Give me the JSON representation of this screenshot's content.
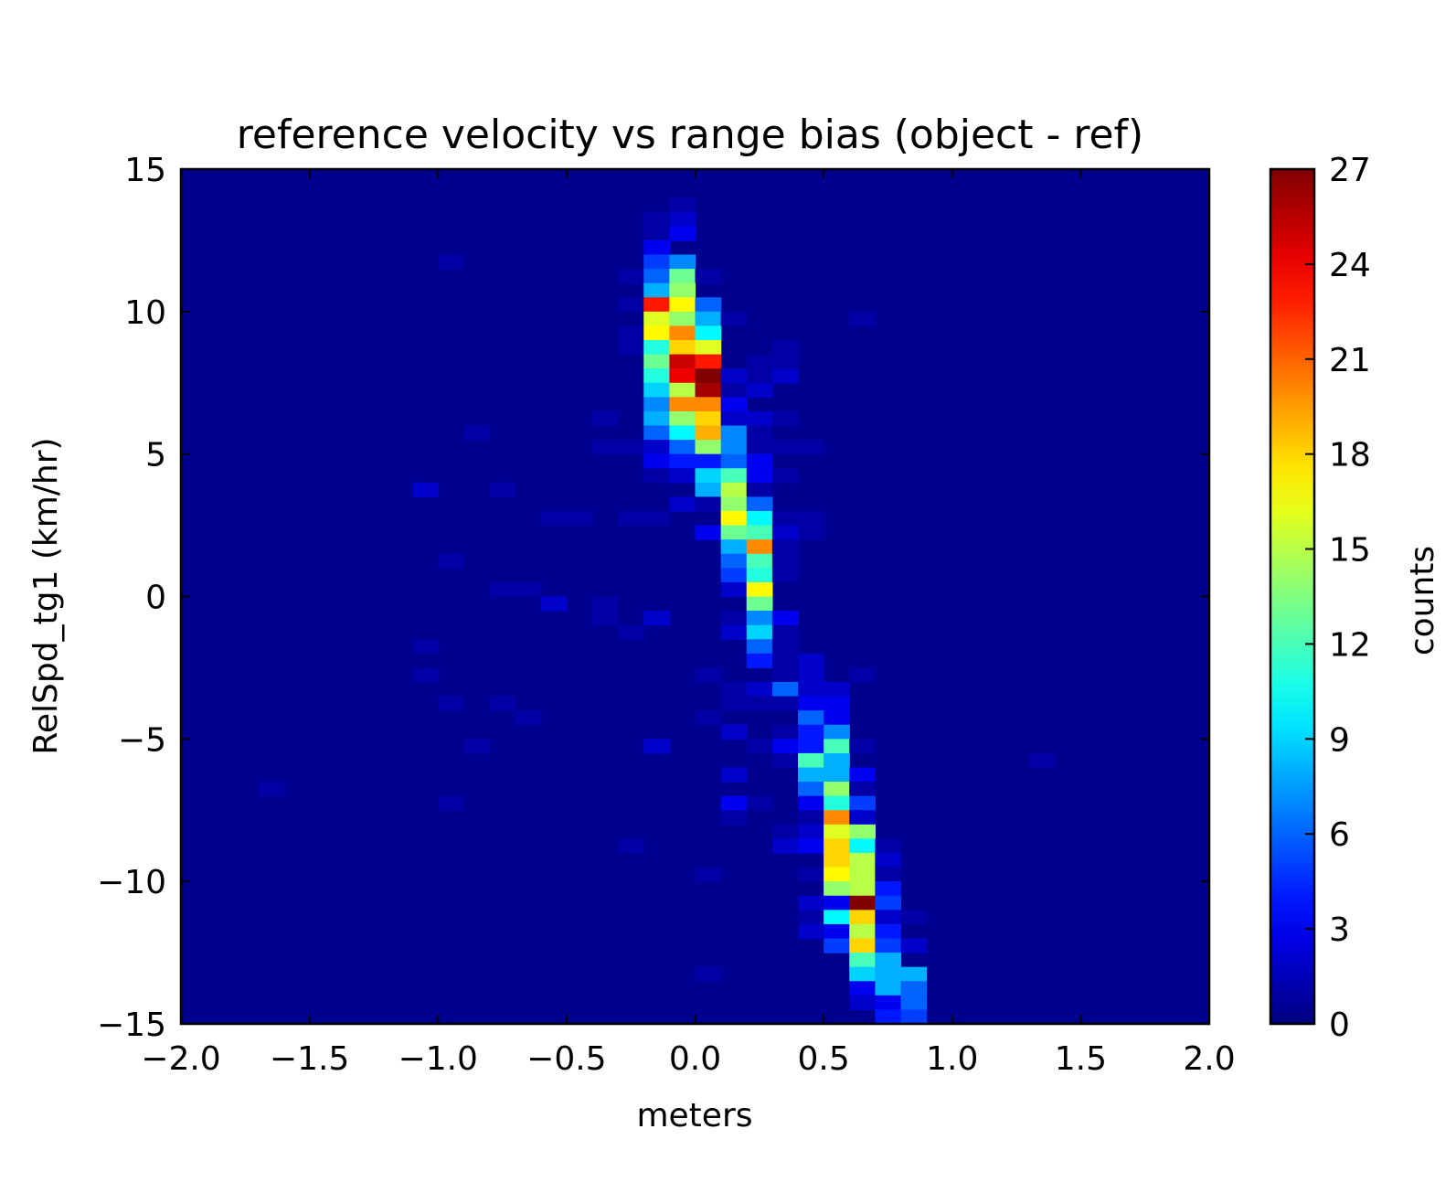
{
  "chart_data": {
    "type": "heatmap",
    "title": "reference velocity vs range bias (object - ref)",
    "xlabel": "meters",
    "ylabel": "RelSpd_tg1 (km/hr)",
    "xlim": [
      -2.0,
      2.0
    ],
    "ylim": [
      -15,
      15
    ],
    "x_ticks": [
      "−2.0",
      "−1.5",
      "−1.0",
      "−0.5",
      "0.0",
      "0.5",
      "1.0",
      "1.5",
      "2.0"
    ],
    "x_tick_values": [
      -2.0,
      -1.5,
      -1.0,
      -0.5,
      0.0,
      0.5,
      1.0,
      1.5,
      2.0
    ],
    "y_ticks": [
      "15",
      "10",
      "5",
      "0",
      "−5",
      "−10",
      "−15"
    ],
    "y_tick_values": [
      15,
      10,
      5,
      0,
      -5,
      -10,
      -15
    ],
    "bin_width_x": 0.1,
    "bin_height_y": 0.5,
    "colormap": "jet",
    "colorbar": {
      "label": "counts",
      "min": 0,
      "max": 27,
      "ticks": [
        "0",
        "3",
        "6",
        "9",
        "12",
        "15",
        "18",
        "21",
        "24",
        "27"
      ],
      "tick_values": [
        0,
        3,
        6,
        9,
        12,
        15,
        18,
        21,
        24,
        27
      ]
    },
    "points_note": "cells: [x_bin_center_m, y_bin_center_kmh, count]; all other bins are 0",
    "cells": [
      [
        -0.05,
        13.75,
        1
      ],
      [
        -0.05,
        13.25,
        2
      ],
      [
        -0.15,
        13.25,
        1
      ],
      [
        -0.15,
        12.75,
        1
      ],
      [
        -0.05,
        12.75,
        3
      ],
      [
        -0.15,
        12.25,
        3
      ],
      [
        -0.15,
        11.75,
        5
      ],
      [
        -0.05,
        11.75,
        7
      ],
      [
        -0.95,
        11.75,
        1
      ],
      [
        -0.25,
        11.25,
        1
      ],
      [
        -0.15,
        11.25,
        6
      ],
      [
        -0.05,
        11.25,
        13
      ],
      [
        0.05,
        11.25,
        1
      ],
      [
        -0.15,
        10.75,
        8
      ],
      [
        -0.05,
        10.75,
        14
      ],
      [
        -0.25,
        10.25,
        1
      ],
      [
        -0.15,
        10.25,
        23
      ],
      [
        -0.05,
        10.25,
        17
      ],
      [
        0.05,
        10.25,
        6
      ],
      [
        -0.15,
        9.75,
        16
      ],
      [
        -0.05,
        9.75,
        14
      ],
      [
        0.05,
        9.75,
        8
      ],
      [
        0.15,
        9.75,
        1
      ],
      [
        0.65,
        9.75,
        1
      ],
      [
        -0.25,
        9.25,
        1
      ],
      [
        -0.15,
        9.25,
        17
      ],
      [
        -0.05,
        9.25,
        20
      ],
      [
        0.05,
        9.25,
        10
      ],
      [
        -0.25,
        8.75,
        1
      ],
      [
        -0.15,
        8.75,
        11
      ],
      [
        -0.05,
        8.75,
        18
      ],
      [
        0.05,
        8.75,
        16
      ],
      [
        0.35,
        8.75,
        1
      ],
      [
        -0.15,
        8.25,
        13
      ],
      [
        -0.05,
        8.25,
        25
      ],
      [
        0.05,
        8.25,
        23
      ],
      [
        0.25,
        8.25,
        1
      ],
      [
        0.35,
        8.25,
        1
      ],
      [
        -0.15,
        7.75,
        11
      ],
      [
        -0.05,
        7.75,
        24
      ],
      [
        0.05,
        7.75,
        27
      ],
      [
        0.15,
        7.75,
        2
      ],
      [
        0.25,
        7.75,
        1
      ],
      [
        0.35,
        7.75,
        2
      ],
      [
        -0.15,
        7.25,
        9
      ],
      [
        -0.05,
        7.25,
        15
      ],
      [
        0.05,
        7.25,
        26
      ],
      [
        0.15,
        7.25,
        1
      ],
      [
        0.25,
        7.25,
        2
      ],
      [
        -0.15,
        6.75,
        7
      ],
      [
        -0.05,
        6.75,
        20
      ],
      [
        0.05,
        6.75,
        20
      ],
      [
        0.15,
        6.75,
        3
      ],
      [
        -0.35,
        6.25,
        1
      ],
      [
        -0.15,
        6.25,
        8
      ],
      [
        -0.05,
        6.25,
        14
      ],
      [
        0.05,
        6.25,
        18
      ],
      [
        0.15,
        6.25,
        2
      ],
      [
        0.25,
        6.25,
        2
      ],
      [
        0.35,
        6.25,
        1
      ],
      [
        -0.85,
        5.75,
        1
      ],
      [
        -0.15,
        5.75,
        6
      ],
      [
        -0.05,
        5.75,
        10
      ],
      [
        0.05,
        5.75,
        19
      ],
      [
        0.15,
        5.75,
        7
      ],
      [
        0.25,
        5.75,
        1
      ],
      [
        -0.35,
        5.25,
        1
      ],
      [
        -0.25,
        5.25,
        1
      ],
      [
        -0.15,
        5.25,
        2
      ],
      [
        -0.05,
        5.25,
        6
      ],
      [
        0.05,
        5.25,
        14
      ],
      [
        0.15,
        5.25,
        7
      ],
      [
        0.25,
        5.25,
        1
      ],
      [
        0.35,
        5.25,
        1
      ],
      [
        0.45,
        5.25,
        1
      ],
      [
        -0.15,
        4.75,
        3
      ],
      [
        -0.05,
        4.75,
        4
      ],
      [
        0.05,
        4.75,
        4
      ],
      [
        0.15,
        4.75,
        6
      ],
      [
        0.25,
        4.75,
        3
      ],
      [
        -0.15,
        4.25,
        1
      ],
      [
        -0.05,
        4.25,
        2
      ],
      [
        0.05,
        4.25,
        9
      ],
      [
        0.15,
        4.25,
        12
      ],
      [
        0.25,
        4.25,
        3
      ],
      [
        0.35,
        4.25,
        1
      ],
      [
        -1.05,
        3.75,
        2
      ],
      [
        -0.75,
        3.75,
        1
      ],
      [
        0.05,
        3.75,
        8
      ],
      [
        0.15,
        3.75,
        15
      ],
      [
        0.25,
        3.75,
        1
      ],
      [
        -0.05,
        3.25,
        2
      ],
      [
        0.05,
        3.25,
        1
      ],
      [
        0.15,
        3.25,
        14
      ],
      [
        0.25,
        3.25,
        6
      ],
      [
        -0.55,
        2.75,
        1
      ],
      [
        -0.45,
        2.75,
        1
      ],
      [
        -0.25,
        2.75,
        1
      ],
      [
        -0.15,
        2.75,
        1
      ],
      [
        0.15,
        2.75,
        17
      ],
      [
        0.25,
        2.75,
        10
      ],
      [
        0.35,
        2.75,
        1
      ],
      [
        0.45,
        2.75,
        1
      ],
      [
        0.05,
        2.25,
        3
      ],
      [
        0.15,
        2.25,
        13
      ],
      [
        0.25,
        2.25,
        12
      ],
      [
        0.35,
        2.25,
        2
      ],
      [
        0.45,
        2.25,
        1
      ],
      [
        0.15,
        1.75,
        8
      ],
      [
        0.25,
        1.75,
        20
      ],
      [
        0.35,
        1.75,
        1
      ],
      [
        -0.95,
        1.25,
        1
      ],
      [
        0.15,
        1.25,
        6
      ],
      [
        0.25,
        1.25,
        12
      ],
      [
        0.35,
        1.25,
        1
      ],
      [
        0.15,
        0.75,
        5
      ],
      [
        0.25,
        0.75,
        11
      ],
      [
        0.35,
        0.75,
        1
      ],
      [
        -0.75,
        0.25,
        1
      ],
      [
        -0.65,
        0.25,
        1
      ],
      [
        0.15,
        0.25,
        2
      ],
      [
        0.25,
        0.25,
        17
      ],
      [
        -0.55,
        -0.25,
        2
      ],
      [
        -0.35,
        -0.25,
        1
      ],
      [
        0.25,
        -0.25,
        13
      ],
      [
        -0.35,
        -0.75,
        1
      ],
      [
        -0.15,
        -0.75,
        2
      ],
      [
        0.15,
        -0.75,
        1
      ],
      [
        0.25,
        -0.75,
        7
      ],
      [
        0.35,
        -0.75,
        3
      ],
      [
        -0.25,
        -1.25,
        1
      ],
      [
        0.15,
        -1.25,
        2
      ],
      [
        0.25,
        -1.25,
        9
      ],
      [
        0.35,
        -1.25,
        1
      ],
      [
        -1.05,
        -1.75,
        1
      ],
      [
        0.25,
        -1.75,
        6
      ],
      [
        0.35,
        -1.75,
        1
      ],
      [
        0.25,
        -2.25,
        4
      ],
      [
        0.35,
        -2.25,
        1
      ],
      [
        0.45,
        -2.25,
        2
      ],
      [
        -1.05,
        -2.75,
        1
      ],
      [
        0.05,
        -2.75,
        1
      ],
      [
        0.35,
        -2.75,
        1
      ],
      [
        0.45,
        -2.75,
        2
      ],
      [
        0.65,
        -2.75,
        1
      ],
      [
        0.15,
        -3.25,
        1
      ],
      [
        0.25,
        -3.25,
        2
      ],
      [
        0.35,
        -3.25,
        6
      ],
      [
        0.45,
        -3.25,
        2
      ],
      [
        0.55,
        -3.25,
        2
      ],
      [
        -0.95,
        -3.75,
        1
      ],
      [
        -0.75,
        -3.75,
        1
      ],
      [
        0.15,
        -3.75,
        1
      ],
      [
        0.25,
        -3.75,
        1
      ],
      [
        0.35,
        -3.75,
        1
      ],
      [
        0.45,
        -3.75,
        3
      ],
      [
        0.55,
        -3.75,
        3
      ],
      [
        -0.65,
        -4.25,
        1
      ],
      [
        0.05,
        -4.25,
        1
      ],
      [
        0.45,
        -4.25,
        6
      ],
      [
        0.55,
        -4.25,
        3
      ],
      [
        0.15,
        -4.75,
        2
      ],
      [
        0.35,
        -4.75,
        1
      ],
      [
        0.45,
        -4.75,
        4
      ],
      [
        0.55,
        -4.75,
        7
      ],
      [
        -0.85,
        -5.25,
        1
      ],
      [
        -0.15,
        -5.25,
        2
      ],
      [
        0.25,
        -5.25,
        1
      ],
      [
        0.35,
        -5.25,
        3
      ],
      [
        0.45,
        -5.25,
        4
      ],
      [
        0.55,
        -5.25,
        12
      ],
      [
        0.65,
        -5.25,
        1
      ],
      [
        0.35,
        -5.75,
        1
      ],
      [
        0.45,
        -5.75,
        12
      ],
      [
        0.55,
        -5.75,
        8
      ],
      [
        1.35,
        -5.75,
        1
      ],
      [
        0.15,
        -6.25,
        2
      ],
      [
        0.45,
        -6.25,
        8
      ],
      [
        0.55,
        -6.25,
        8
      ],
      [
        0.65,
        -6.25,
        3
      ],
      [
        -1.65,
        -6.75,
        1
      ],
      [
        0.45,
        -6.75,
        6
      ],
      [
        0.55,
        -6.75,
        14
      ],
      [
        0.65,
        -6.75,
        1
      ],
      [
        -0.95,
        -7.25,
        1
      ],
      [
        0.15,
        -7.25,
        3
      ],
      [
        0.25,
        -7.25,
        1
      ],
      [
        0.45,
        -7.25,
        3
      ],
      [
        0.55,
        -7.25,
        11
      ],
      [
        0.65,
        -7.25,
        5
      ],
      [
        0.15,
        -7.75,
        1
      ],
      [
        0.45,
        -7.75,
        1
      ],
      [
        0.55,
        -7.75,
        20
      ],
      [
        0.65,
        -7.75,
        2
      ],
      [
        0.35,
        -8.25,
        1
      ],
      [
        0.45,
        -8.25,
        2
      ],
      [
        0.55,
        -8.25,
        16
      ],
      [
        0.65,
        -8.25,
        14
      ],
      [
        -0.25,
        -8.75,
        1
      ],
      [
        0.35,
        -8.75,
        2
      ],
      [
        0.45,
        -8.75,
        3
      ],
      [
        0.55,
        -8.75,
        18
      ],
      [
        0.65,
        -8.75,
        10
      ],
      [
        0.75,
        -8.75,
        1
      ],
      [
        0.55,
        -9.25,
        18
      ],
      [
        0.65,
        -9.25,
        15
      ],
      [
        0.75,
        -9.25,
        2
      ],
      [
        0.05,
        -9.75,
        1
      ],
      [
        0.45,
        -9.75,
        1
      ],
      [
        0.55,
        -9.75,
        17
      ],
      [
        0.65,
        -9.75,
        15
      ],
      [
        0.75,
        -9.75,
        1
      ],
      [
        0.55,
        -10.25,
        14
      ],
      [
        0.65,
        -10.25,
        15
      ],
      [
        0.75,
        -10.25,
        4
      ],
      [
        0.45,
        -10.75,
        2
      ],
      [
        0.55,
        -10.75,
        3
      ],
      [
        0.65,
        -10.75,
        27
      ],
      [
        0.75,
        -10.75,
        5
      ],
      [
        0.45,
        -11.25,
        1
      ],
      [
        0.55,
        -11.25,
        10
      ],
      [
        0.65,
        -11.25,
        18
      ],
      [
        0.75,
        -11.25,
        2
      ],
      [
        0.85,
        -11.25,
        1
      ],
      [
        0.45,
        -11.75,
        2
      ],
      [
        0.55,
        -11.75,
        3
      ],
      [
        0.65,
        -11.75,
        15
      ],
      [
        0.75,
        -11.75,
        4
      ],
      [
        0.55,
        -12.25,
        5
      ],
      [
        0.65,
        -12.25,
        18
      ],
      [
        0.75,
        -12.25,
        5
      ],
      [
        0.85,
        -12.25,
        2
      ],
      [
        0.65,
        -12.75,
        12
      ],
      [
        0.75,
        -12.75,
        8
      ],
      [
        0.05,
        -13.25,
        1
      ],
      [
        0.65,
        -13.25,
        9
      ],
      [
        0.75,
        -13.25,
        8
      ],
      [
        0.85,
        -13.25,
        8
      ],
      [
        0.65,
        -13.75,
        3
      ],
      [
        0.75,
        -13.75,
        8
      ],
      [
        0.85,
        -13.75,
        6
      ],
      [
        0.65,
        -14.25,
        2
      ],
      [
        0.75,
        -14.25,
        3
      ],
      [
        0.85,
        -14.25,
        6
      ],
      [
        0.75,
        -14.75,
        4
      ],
      [
        0.85,
        -14.75,
        5
      ]
    ]
  }
}
